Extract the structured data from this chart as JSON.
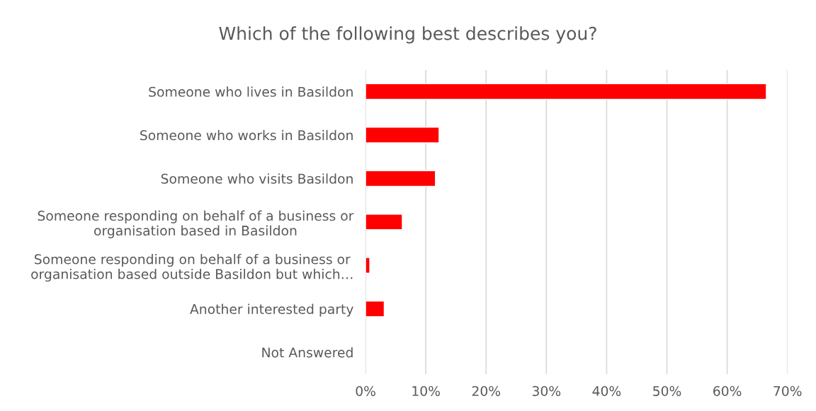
{
  "chart_data": {
    "type": "bar",
    "orientation": "horizontal",
    "title": "Which of the following best describes you?",
    "categories": [
      "Someone who lives in Basildon",
      "Someone who works in Basildon",
      "Someone who visits Basildon",
      "Someone responding on behalf of a business or\norganisation based in Basildon",
      "Someone responding on behalf of a business or\norganisation based outside Basildon but which…",
      "Another interested party",
      "Not Answered"
    ],
    "values": [
      66.5,
      12.2,
      11.6,
      6.1,
      0.7,
      3.1,
      0
    ],
    "color": "#ff0000",
    "xlim": [
      0,
      70
    ],
    "xticks": [
      {
        "value": 0,
        "label": "0%"
      },
      {
        "value": 10,
        "label": "10%"
      },
      {
        "value": 20,
        "label": "20%"
      },
      {
        "value": 30,
        "label": "30%"
      },
      {
        "value": 40,
        "label": "40%"
      },
      {
        "value": 50,
        "label": "50%"
      },
      {
        "value": 60,
        "label": "60%"
      },
      {
        "value": 70,
        "label": "70%"
      }
    ],
    "grid": "x",
    "legend": false
  }
}
